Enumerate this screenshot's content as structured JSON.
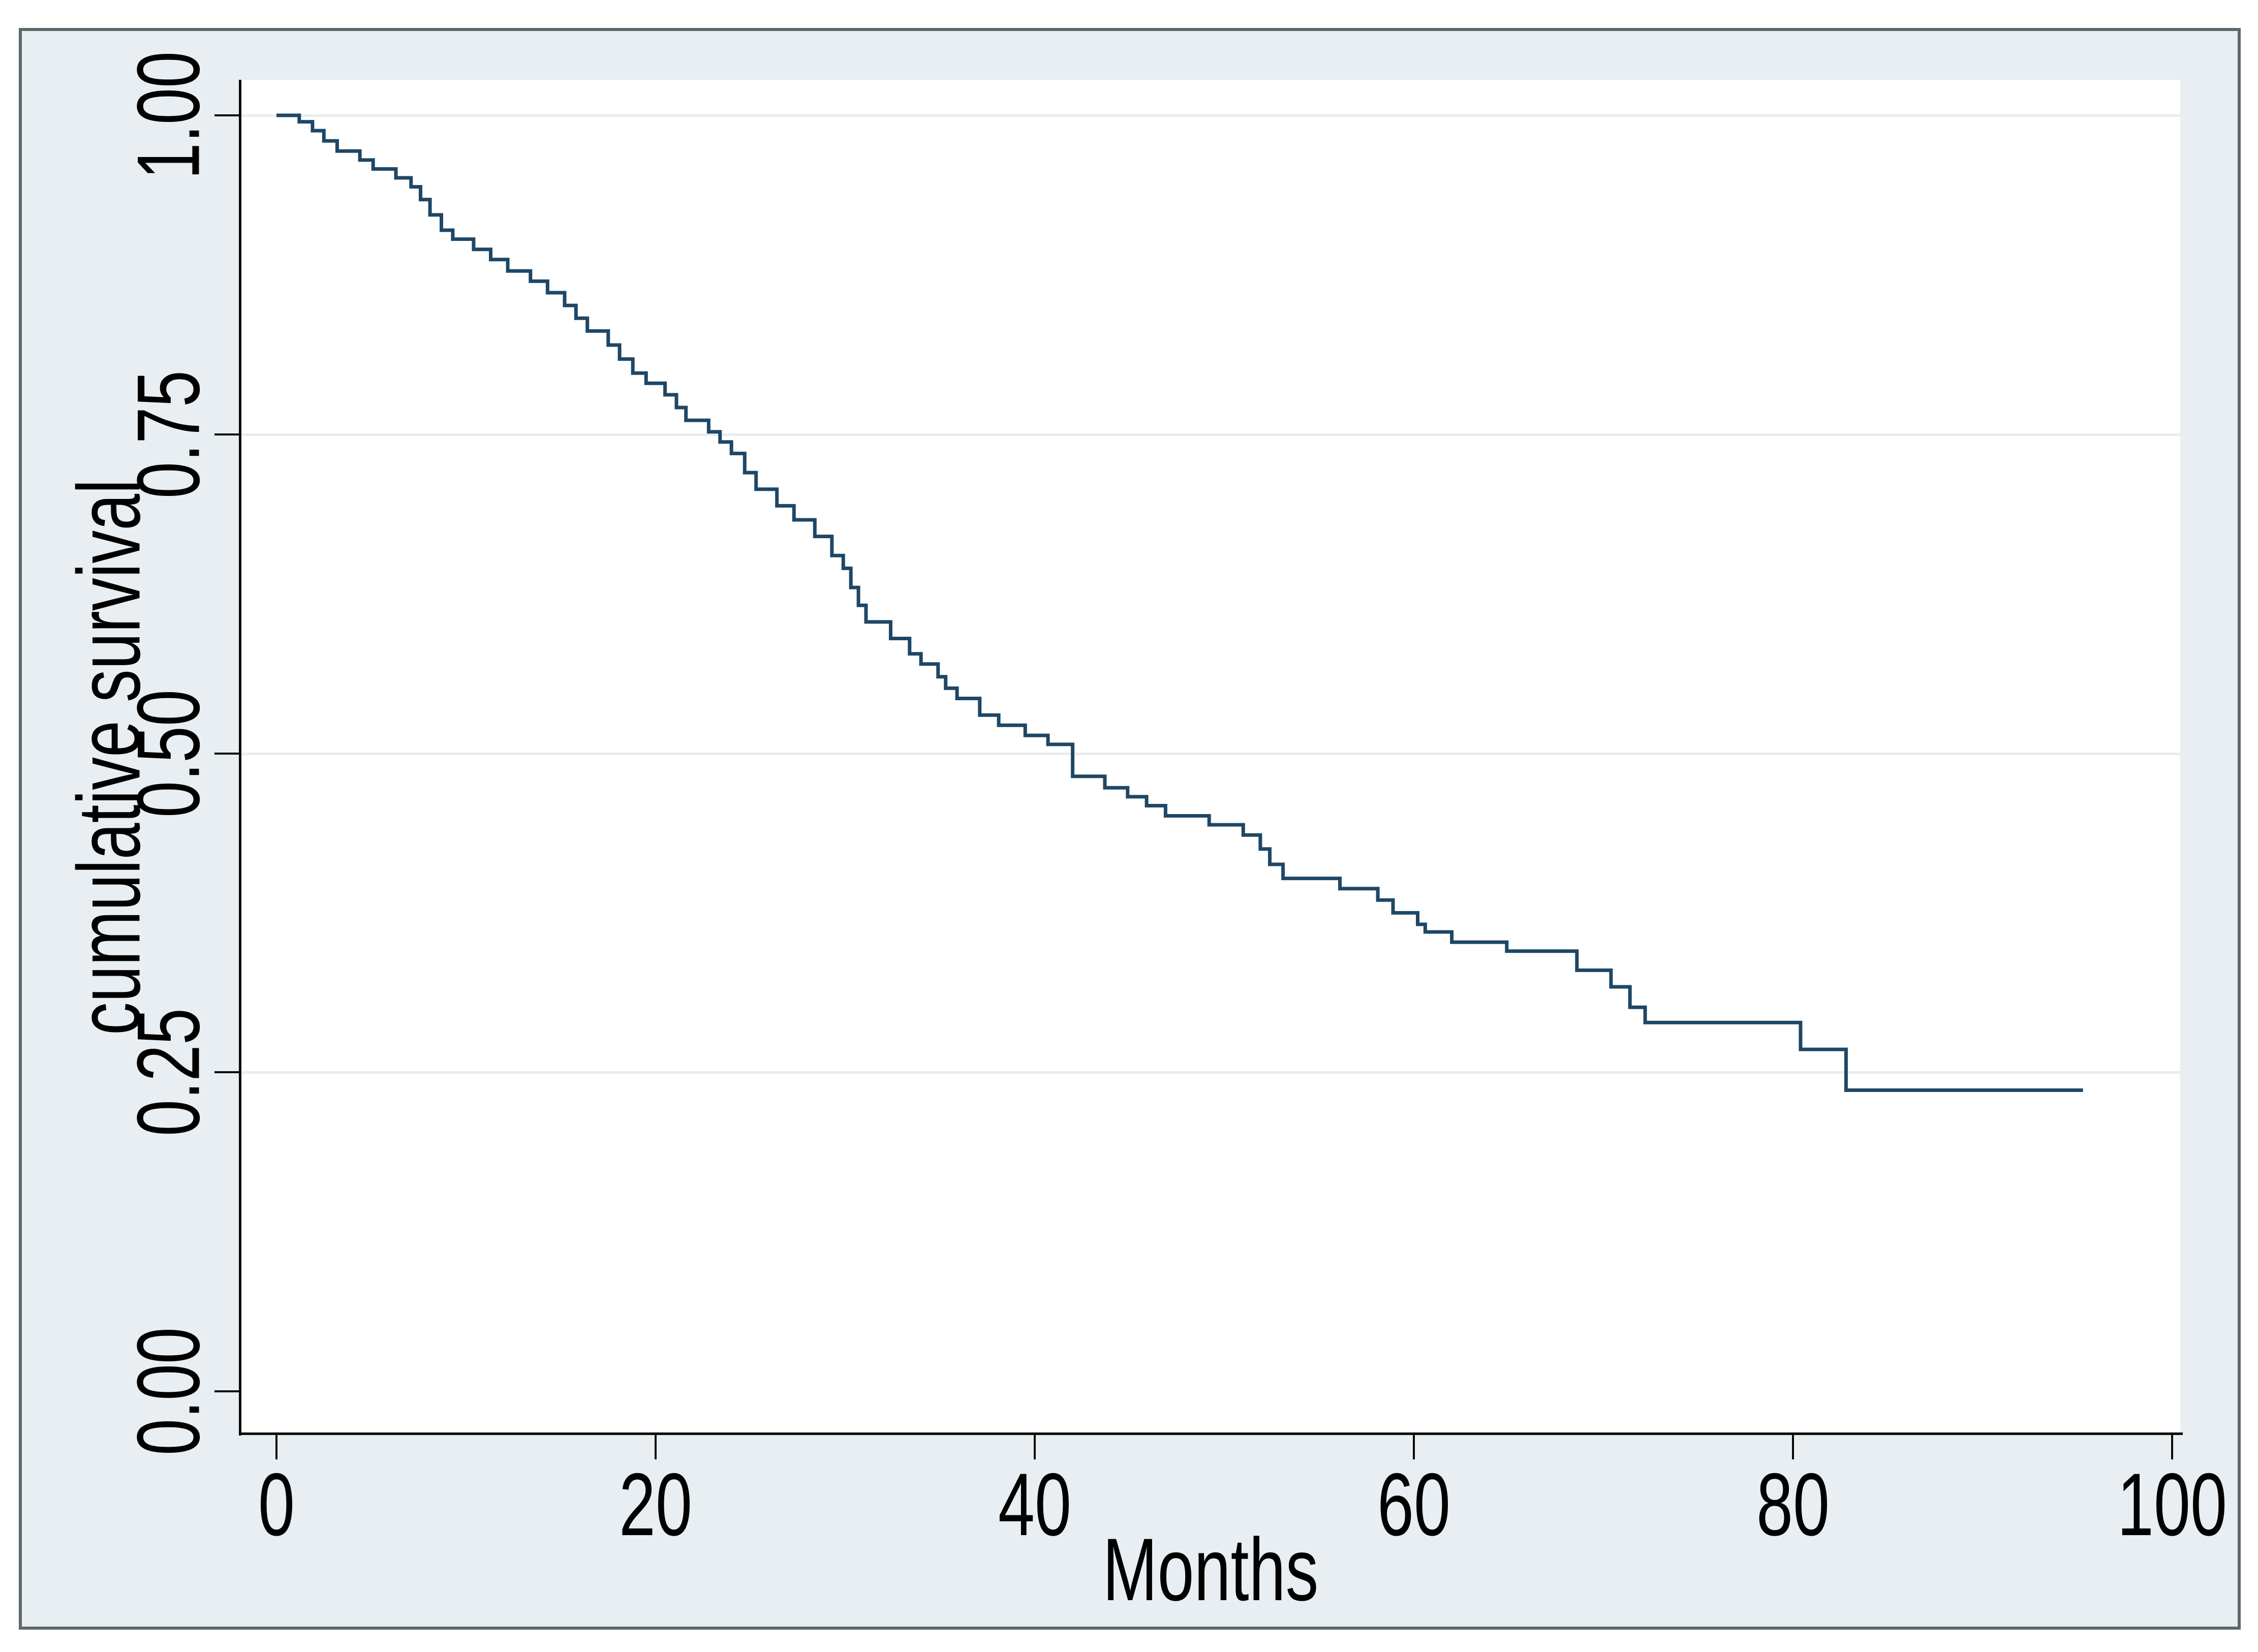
{
  "page": {
    "background": "#ffffff"
  },
  "figure": {
    "background": "#e8eef1",
    "border_color": "#5e686b",
    "plot_background": "#ffffff",
    "gridline_color": "#e9edee",
    "axis_color": "#0a0a0a",
    "text_color": "#000000"
  },
  "chart_data": {
    "type": "line",
    "subtype": "kaplan-meier-step",
    "title": "",
    "xlabel": "Months",
    "ylabel": "cumulative survival",
    "line_color": "#1e4766",
    "legend_position": "none",
    "grid": "horizontal",
    "xlim": [
      -1.9,
      100.4
    ],
    "ylim": [
      -0.034,
      1.028
    ],
    "x_ticks": [
      {
        "value": 0,
        "label": "0"
      },
      {
        "value": 20,
        "label": "20"
      },
      {
        "value": 40,
        "label": "40"
      },
      {
        "value": 60,
        "label": "60"
      },
      {
        "value": 80,
        "label": "80"
      },
      {
        "value": 100,
        "label": "100"
      }
    ],
    "y_ticks": [
      {
        "value": 1.0,
        "label": "1.00"
      },
      {
        "value": 0.75,
        "label": "0.75"
      },
      {
        "value": 0.5,
        "label": "0.50"
      },
      {
        "value": 0.25,
        "label": "0.25"
      },
      {
        "value": 0.0,
        "label": "0.00"
      }
    ],
    "series": [
      {
        "name": "cumulative survival",
        "step": "post",
        "end_time": 95.3,
        "points": [
          [
            0,
            1.0
          ],
          [
            1.2,
            0.995
          ],
          [
            1.9,
            0.988
          ],
          [
            2.5,
            0.98
          ],
          [
            3.2,
            0.972
          ],
          [
            4.4,
            0.965
          ],
          [
            5.1,
            0.958
          ],
          [
            6.3,
            0.951
          ],
          [
            7.1,
            0.944
          ],
          [
            7.6,
            0.934
          ],
          [
            8.1,
            0.922
          ],
          [
            8.7,
            0.91
          ],
          [
            9.3,
            0.903
          ],
          [
            10.4,
            0.895
          ],
          [
            11.3,
            0.887
          ],
          [
            12.2,
            0.878
          ],
          [
            13.4,
            0.87
          ],
          [
            14.3,
            0.861
          ],
          [
            15.2,
            0.851
          ],
          [
            15.8,
            0.841
          ],
          [
            16.4,
            0.831
          ],
          [
            17.5,
            0.82
          ],
          [
            18.1,
            0.809
          ],
          [
            18.8,
            0.798
          ],
          [
            19.5,
            0.79
          ],
          [
            20.5,
            0.781
          ],
          [
            21.1,
            0.771
          ],
          [
            21.6,
            0.761
          ],
          [
            22.8,
            0.752
          ],
          [
            23.4,
            0.744
          ],
          [
            24.0,
            0.735
          ],
          [
            24.7,
            0.72
          ],
          [
            25.3,
            0.707
          ],
          [
            26.4,
            0.694
          ],
          [
            27.3,
            0.683
          ],
          [
            28.4,
            0.67
          ],
          [
            29.3,
            0.655
          ],
          [
            29.9,
            0.645
          ],
          [
            30.3,
            0.63
          ],
          [
            30.7,
            0.616
          ],
          [
            31.1,
            0.603
          ],
          [
            32.4,
            0.59
          ],
          [
            33.4,
            0.578
          ],
          [
            34.0,
            0.57
          ],
          [
            34.9,
            0.56
          ],
          [
            35.3,
            0.551
          ],
          [
            35.9,
            0.543
          ],
          [
            37.1,
            0.53
          ],
          [
            38.1,
            0.522
          ],
          [
            39.5,
            0.514
          ],
          [
            40.7,
            0.507
          ],
          [
            42.0,
            0.482
          ],
          [
            43.7,
            0.473
          ],
          [
            44.9,
            0.466
          ],
          [
            45.9,
            0.459
          ],
          [
            46.9,
            0.451
          ],
          [
            49.2,
            0.444
          ],
          [
            51.0,
            0.436
          ],
          [
            51.9,
            0.425
          ],
          [
            52.4,
            0.413
          ],
          [
            53.1,
            0.402
          ],
          [
            56.1,
            0.394
          ],
          [
            58.1,
            0.385
          ],
          [
            58.9,
            0.375
          ],
          [
            60.2,
            0.366
          ],
          [
            60.6,
            0.36
          ],
          [
            62.0,
            0.352
          ],
          [
            64.9,
            0.345
          ],
          [
            68.6,
            0.33
          ],
          [
            70.4,
            0.317
          ],
          [
            71.4,
            0.301
          ],
          [
            72.2,
            0.289
          ],
          [
            80.4,
            0.268
          ],
          [
            82.8,
            0.236
          ]
        ]
      }
    ]
  }
}
